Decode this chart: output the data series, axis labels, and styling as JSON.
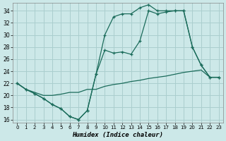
{
  "xlabel": "Humidex (Indice chaleur)",
  "bg_color": "#cce8e8",
  "grid_color": "#aacece",
  "line_color": "#1a6b5a",
  "xlim": [
    -0.5,
    23.5
  ],
  "ylim": [
    15.5,
    35.3
  ],
  "xticks": [
    0,
    1,
    2,
    3,
    4,
    5,
    6,
    7,
    8,
    9,
    10,
    11,
    12,
    13,
    14,
    15,
    16,
    17,
    18,
    19,
    20,
    21,
    22,
    23
  ],
  "yticks": [
    16,
    18,
    20,
    22,
    24,
    26,
    28,
    30,
    32,
    34
  ],
  "line1_x": [
    0,
    1,
    2,
    3,
    4,
    5,
    6,
    7,
    8,
    9,
    10,
    11,
    12,
    13,
    14,
    15,
    16,
    17,
    18,
    19,
    20,
    21,
    22,
    23
  ],
  "line1_y": [
    22.0,
    21.0,
    20.3,
    19.5,
    18.5,
    17.8,
    16.5,
    16.0,
    17.5,
    23.5,
    30.0,
    33.0,
    33.5,
    33.5,
    34.5,
    35.0,
    34.0,
    34.0,
    34.0,
    34.0,
    28.0,
    25.0,
    23.0,
    23.0
  ],
  "line2_x": [
    0,
    1,
    2,
    3,
    4,
    5,
    6,
    7,
    8,
    9,
    10,
    11,
    12,
    13,
    14,
    15,
    16,
    17,
    18,
    19,
    20,
    21,
    22,
    23
  ],
  "line2_y": [
    22.0,
    21.0,
    20.3,
    19.5,
    18.5,
    17.8,
    16.5,
    16.0,
    17.5,
    23.5,
    27.5,
    27.0,
    27.2,
    26.8,
    29.0,
    34.0,
    33.5,
    33.8,
    34.0,
    34.0,
    28.0,
    25.0,
    23.0,
    23.0
  ],
  "line3_x": [
    0,
    1,
    2,
    3,
    4,
    5,
    6,
    7,
    8,
    9,
    10,
    11,
    12,
    13,
    14,
    15,
    16,
    17,
    18,
    19,
    20,
    21,
    22,
    23
  ],
  "line3_y": [
    22.0,
    21.0,
    20.5,
    20.0,
    20.0,
    20.2,
    20.5,
    20.5,
    21.0,
    21.0,
    21.5,
    21.8,
    22.0,
    22.3,
    22.5,
    22.8,
    23.0,
    23.2,
    23.5,
    23.8,
    24.0,
    24.2,
    23.0,
    23.0
  ]
}
